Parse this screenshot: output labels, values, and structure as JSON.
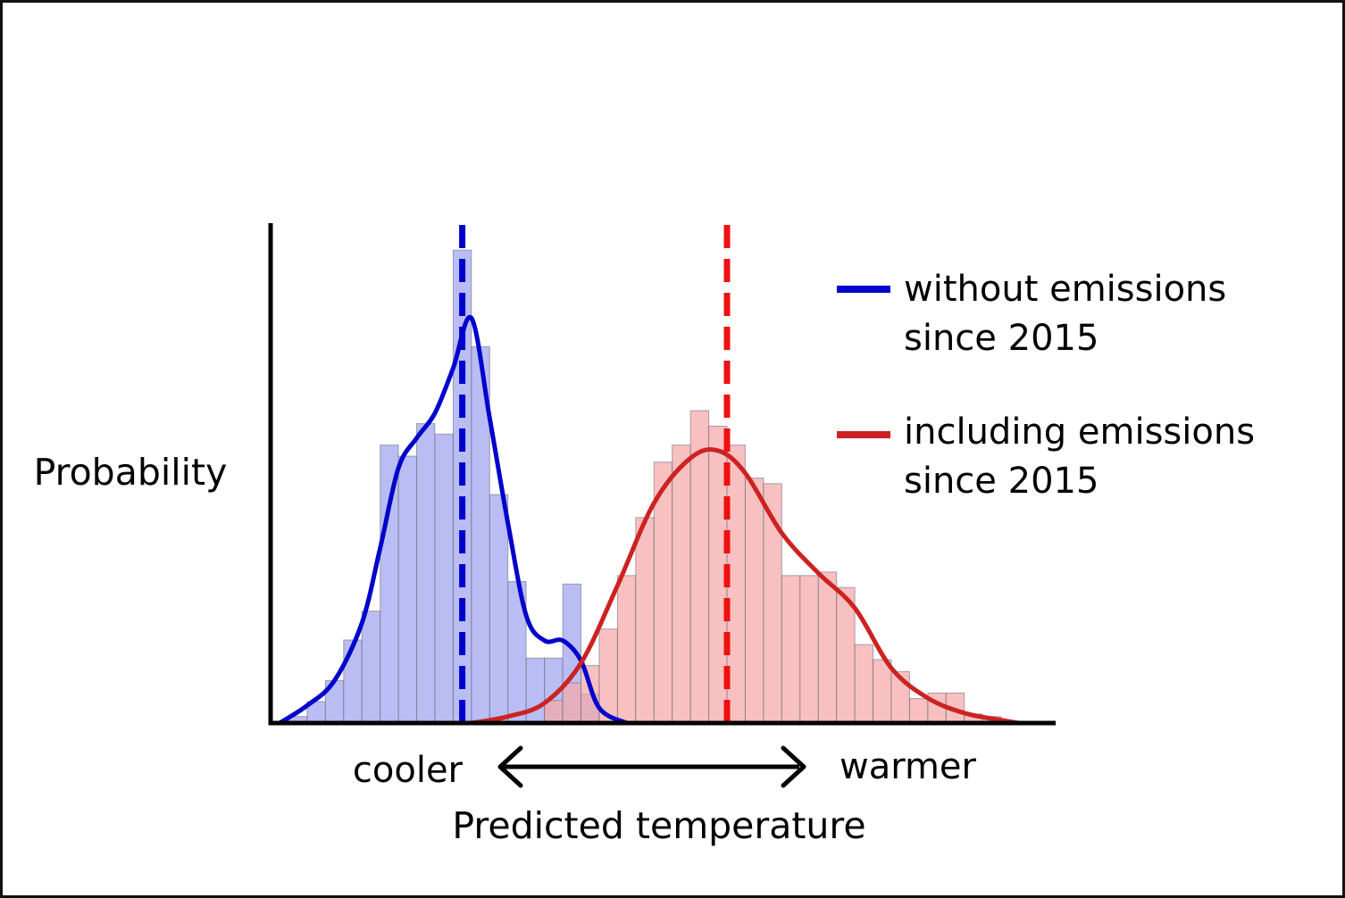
{
  "chart_data": {
    "type": "bar",
    "ylabel": "Probability",
    "xlabel": "Predicted temperature",
    "x_end_labels": {
      "left": "cooler",
      "right": "warmer"
    },
    "grid": false,
    "legend_position": "top-right",
    "x_domain": [
      0,
      43
    ],
    "ylim": [
      0,
      1
    ],
    "series": [
      {
        "name": "without emissions since 2015",
        "color": "#0000cc",
        "fill": "#9fa4ee",
        "mean": 10.5,
        "histogram": [
          {
            "x0": 1,
            "x1": 2,
            "y": 0.013
          },
          {
            "x0": 2,
            "x1": 3,
            "y": 0.043
          },
          {
            "x0": 3,
            "x1": 4,
            "y": 0.085
          },
          {
            "x0": 4,
            "x1": 5,
            "y": 0.166
          },
          {
            "x0": 5,
            "x1": 6,
            "y": 0.224
          },
          {
            "x0": 6,
            "x1": 7,
            "y": 0.556
          },
          {
            "x0": 7,
            "x1": 8,
            "y": 0.534
          },
          {
            "x0": 8,
            "x1": 9,
            "y": 0.599
          },
          {
            "x0": 9,
            "x1": 10,
            "y": 0.578
          },
          {
            "x0": 10,
            "x1": 11,
            "y": 0.946
          },
          {
            "x0": 11,
            "x1": 12,
            "y": 0.753
          },
          {
            "x0": 12,
            "x1": 13,
            "y": 0.457
          },
          {
            "x0": 13,
            "x1": 14,
            "y": 0.283
          },
          {
            "x0": 14,
            "x1": 15,
            "y": 0.13
          },
          {
            "x0": 15,
            "x1": 16,
            "y": 0.13
          },
          {
            "x0": 16,
            "x1": 17,
            "y": 0.278
          },
          {
            "x0": 17,
            "x1": 18,
            "y": 0.058
          }
        ],
        "curve": [
          {
            "x": 0.5,
            "y": 0.0
          },
          {
            "x": 2.0,
            "y": 0.035
          },
          {
            "x": 3.5,
            "y": 0.085
          },
          {
            "x": 5.0,
            "y": 0.2
          },
          {
            "x": 6.0,
            "y": 0.35
          },
          {
            "x": 7.0,
            "y": 0.51
          },
          {
            "x": 8.0,
            "y": 0.57
          },
          {
            "x": 9.0,
            "y": 0.62
          },
          {
            "x": 10.0,
            "y": 0.71
          },
          {
            "x": 11.0,
            "y": 0.81
          },
          {
            "x": 12.0,
            "y": 0.61
          },
          {
            "x": 13.0,
            "y": 0.4
          },
          {
            "x": 14.0,
            "y": 0.215
          },
          {
            "x": 15.0,
            "y": 0.165
          },
          {
            "x": 16.0,
            "y": 0.165
          },
          {
            "x": 17.0,
            "y": 0.125
          },
          {
            "x": 18.0,
            "y": 0.03
          },
          {
            "x": 19.5,
            "y": 0.0
          }
        ]
      },
      {
        "name": "including emissions since 2015",
        "color": "#cc2222",
        "fill": "#f5a7a7",
        "mean": 25.0,
        "histogram": [
          {
            "x0": 15,
            "x1": 16,
            "y": 0.045
          },
          {
            "x0": 16,
            "x1": 17,
            "y": 0.08
          },
          {
            "x0": 17,
            "x1": 18,
            "y": 0.115
          },
          {
            "x0": 18,
            "x1": 19,
            "y": 0.188
          },
          {
            "x0": 19,
            "x1": 20,
            "y": 0.295
          },
          {
            "x0": 20,
            "x1": 21,
            "y": 0.411
          },
          {
            "x0": 21,
            "x1": 22,
            "y": 0.522
          },
          {
            "x0": 22,
            "x1": 23,
            "y": 0.556
          },
          {
            "x0": 23,
            "x1": 24,
            "y": 0.625
          },
          {
            "x0": 24,
            "x1": 25,
            "y": 0.594
          },
          {
            "x0": 25,
            "x1": 26,
            "y": 0.556
          },
          {
            "x0": 26,
            "x1": 27,
            "y": 0.49
          },
          {
            "x0": 27,
            "x1": 28,
            "y": 0.479
          },
          {
            "x0": 28,
            "x1": 29,
            "y": 0.295
          },
          {
            "x0": 29,
            "x1": 30,
            "y": 0.295
          },
          {
            "x0": 30,
            "x1": 31,
            "y": 0.302
          },
          {
            "x0": 31,
            "x1": 32,
            "y": 0.271
          },
          {
            "x0": 32,
            "x1": 33,
            "y": 0.157
          },
          {
            "x0": 33,
            "x1": 34,
            "y": 0.127
          },
          {
            "x0": 34,
            "x1": 35,
            "y": 0.103
          },
          {
            "x0": 35,
            "x1": 36,
            "y": 0.049
          },
          {
            "x0": 36,
            "x1": 37,
            "y": 0.06
          },
          {
            "x0": 37,
            "x1": 38,
            "y": 0.06
          },
          {
            "x0": 38,
            "x1": 39,
            "y": 0.018
          },
          {
            "x0": 39,
            "x1": 40,
            "y": 0.013
          }
        ],
        "curve": [
          {
            "x": 11.0,
            "y": 0.0
          },
          {
            "x": 13.0,
            "y": 0.013
          },
          {
            "x": 15.0,
            "y": 0.04
          },
          {
            "x": 17.0,
            "y": 0.12
          },
          {
            "x": 19.0,
            "y": 0.275
          },
          {
            "x": 21.0,
            "y": 0.44
          },
          {
            "x": 23.0,
            "y": 0.53
          },
          {
            "x": 24.5,
            "y": 0.545
          },
          {
            "x": 26.0,
            "y": 0.5
          },
          {
            "x": 28.0,
            "y": 0.38
          },
          {
            "x": 30.0,
            "y": 0.3
          },
          {
            "x": 32.0,
            "y": 0.23
          },
          {
            "x": 34.0,
            "y": 0.11
          },
          {
            "x": 36.0,
            "y": 0.05
          },
          {
            "x": 38.0,
            "y": 0.02
          },
          {
            "x": 40.0,
            "y": 0.006
          },
          {
            "x": 41.0,
            "y": 0.0
          }
        ]
      }
    ]
  },
  "legend": {
    "items": [
      {
        "line1": "without emissions",
        "line2": "since 2015",
        "color": "#0000cc"
      },
      {
        "line1": "including emissions",
        "line2": "since 2015",
        "color": "#cc2222"
      }
    ]
  }
}
